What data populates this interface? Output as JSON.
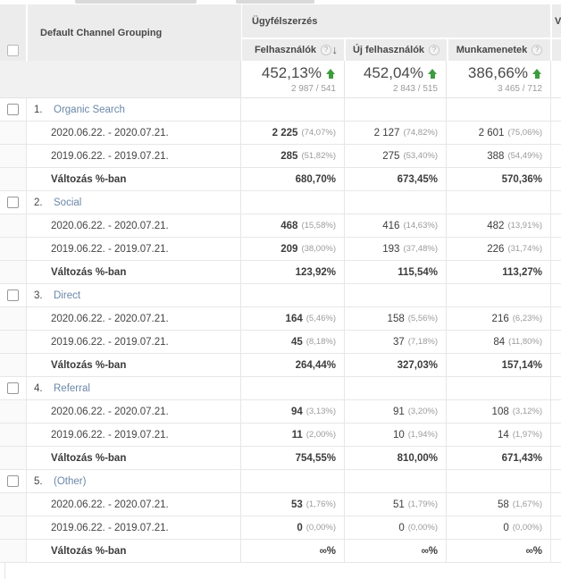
{
  "icons": {
    "help": "?",
    "sort_desc": "↓"
  },
  "colors": {
    "link_blue": "#6b87a8",
    "positive_green": "#3d9c3d",
    "header_bg": "#ececec"
  },
  "table": {
    "dimension_header": "Default Channel Grouping",
    "section_header": "Ügyfélszerzés",
    "next_section_partial": "V",
    "columns": [
      {
        "label": "Felhasználók"
      },
      {
        "label": "Új felhasználók"
      },
      {
        "label": "Munkamenetek"
      }
    ],
    "summary": {
      "cells": [
        {
          "percent": "452,13%",
          "ratio": "2 987 / 541"
        },
        {
          "percent": "452,04%",
          "ratio": "2 843 / 515"
        },
        {
          "percent": "386,66%",
          "ratio": "3 465 / 712"
        }
      ]
    },
    "period_labels": {
      "current": "2020.06.22. - 2020.07.21.",
      "previous": "2019.06.22. - 2019.07.21.",
      "change": "Változás %-ban"
    },
    "rows": [
      {
        "num": "1.",
        "channel": "Organic Search",
        "current": [
          {
            "value": "2 225",
            "share": "(74,07%)"
          },
          {
            "value": "2 127",
            "share": "(74,82%)"
          },
          {
            "value": "2 601",
            "share": "(75,06%)"
          }
        ],
        "previous": [
          {
            "value": "285",
            "share": "(51,82%)"
          },
          {
            "value": "275",
            "share": "(53,40%)"
          },
          {
            "value": "388",
            "share": "(54,49%)"
          }
        ],
        "change": [
          "680,70%",
          "673,45%",
          "570,36%"
        ]
      },
      {
        "num": "2.",
        "channel": "Social",
        "current": [
          {
            "value": "468",
            "share": "(15,58%)"
          },
          {
            "value": "416",
            "share": "(14,63%)"
          },
          {
            "value": "482",
            "share": "(13,91%)"
          }
        ],
        "previous": [
          {
            "value": "209",
            "share": "(38,00%)"
          },
          {
            "value": "193",
            "share": "(37,48%)"
          },
          {
            "value": "226",
            "share": "(31,74%)"
          }
        ],
        "change": [
          "123,92%",
          "115,54%",
          "113,27%"
        ]
      },
      {
        "num": "3.",
        "channel": "Direct",
        "current": [
          {
            "value": "164",
            "share": "(5,46%)"
          },
          {
            "value": "158",
            "share": "(5,56%)"
          },
          {
            "value": "216",
            "share": "(6,23%)"
          }
        ],
        "previous": [
          {
            "value": "45",
            "share": "(8,18%)"
          },
          {
            "value": "37",
            "share": "(7,18%)"
          },
          {
            "value": "84",
            "share": "(11,80%)"
          }
        ],
        "change": [
          "264,44%",
          "327,03%",
          "157,14%"
        ]
      },
      {
        "num": "4.",
        "channel": "Referral",
        "current": [
          {
            "value": "94",
            "share": "(3,13%)"
          },
          {
            "value": "91",
            "share": "(3,20%)"
          },
          {
            "value": "108",
            "share": "(3,12%)"
          }
        ],
        "previous": [
          {
            "value": "11",
            "share": "(2,00%)"
          },
          {
            "value": "10",
            "share": "(1,94%)"
          },
          {
            "value": "14",
            "share": "(1,97%)"
          }
        ],
        "change": [
          "754,55%",
          "810,00%",
          "671,43%"
        ]
      },
      {
        "num": "5.",
        "channel": "(Other)",
        "current": [
          {
            "value": "53",
            "share": "(1,76%)"
          },
          {
            "value": "51",
            "share": "(1,79%)"
          },
          {
            "value": "58",
            "share": "(1,67%)"
          }
        ],
        "previous": [
          {
            "value": "0",
            "share": "(0,00%)"
          },
          {
            "value": "0",
            "share": "(0,00%)"
          },
          {
            "value": "0",
            "share": "(0,00%)"
          }
        ],
        "change": [
          "∞%",
          "∞%",
          "∞%"
        ]
      }
    ]
  }
}
